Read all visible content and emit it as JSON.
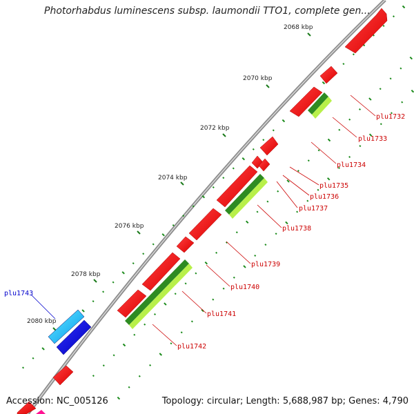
{
  "title": "Photorhabdus luminescens subsp. laumondii TTO1, complete gen...",
  "footer": {
    "accession_label": "Accession:",
    "accession": "NC_005126",
    "topology_label": "Topology:",
    "topology": "circular",
    "length_label": "Length:",
    "length": "5,688,987 bp",
    "genes_label": "Genes:",
    "genes": "4,790"
  },
  "scale_ticks": [
    "2068 kbp",
    "2070 kbp",
    "2072 kbp",
    "2074 kbp",
    "2076 kbp",
    "2078 kbp",
    "2080 kbp"
  ],
  "gene_labels": [
    {
      "name": "plu1732",
      "color": "#cc0000"
    },
    {
      "name": "plu1733",
      "color": "#cc0000"
    },
    {
      "name": "plu1734",
      "color": "#cc0000"
    },
    {
      "name": "plu1735",
      "color": "#cc0000"
    },
    {
      "name": "plu1736",
      "color": "#cc0000"
    },
    {
      "name": "plu1737",
      "color": "#cc0000"
    },
    {
      "name": "plu1738",
      "color": "#cc0000"
    },
    {
      "name": "plu1739",
      "color": "#cc0000"
    },
    {
      "name": "plu1740",
      "color": "#cc0000"
    },
    {
      "name": "plu1741",
      "color": "#cc0000"
    },
    {
      "name": "plu1742",
      "color": "#cc0000"
    },
    {
      "name": "plu1743",
      "color": "#0000cc"
    }
  ],
  "colors": {
    "backbone": "#8c8c8c",
    "cds": "#ff0000",
    "cds_dark": "#cc0000",
    "rna_dark": "#2e8b22",
    "rna_light": "#b8f04a",
    "blue_cds": "#0000ee",
    "cyan_cds": "#22ccff",
    "gc_dots": "#1a8a1a",
    "magenta": "#ff1493"
  }
}
